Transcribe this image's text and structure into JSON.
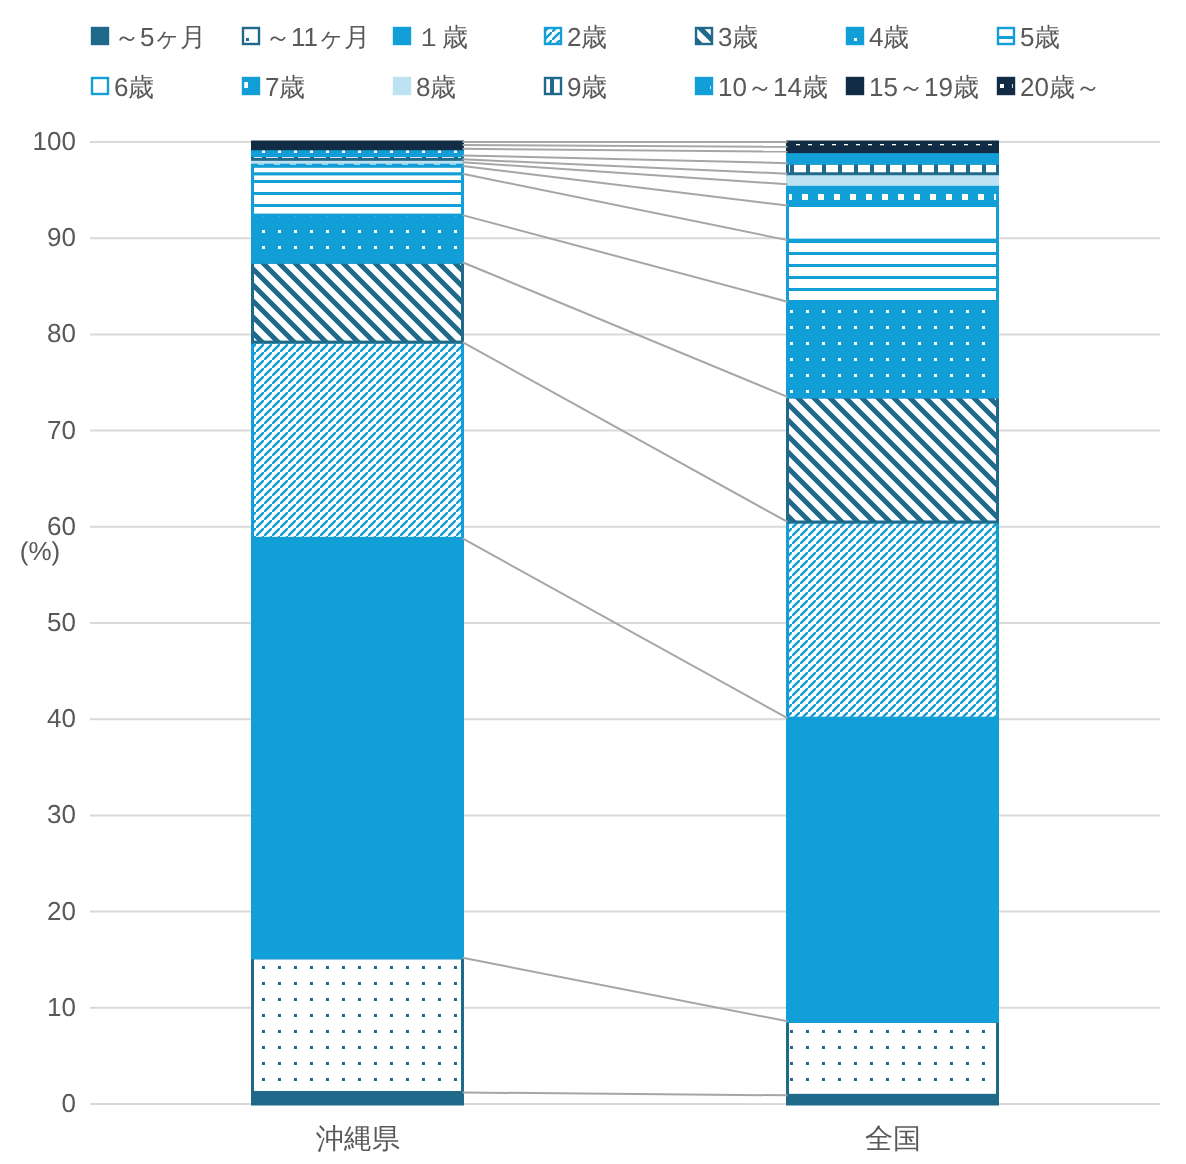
{
  "chart_data": {
    "type": "bar",
    "stacked": true,
    "ylabel": "(%)",
    "categories": [
      "沖縄県",
      "全国"
    ],
    "ylim": [
      0,
      100
    ],
    "yticks": [
      0,
      10,
      20,
      30,
      40,
      50,
      60,
      70,
      80,
      90,
      100
    ],
    "grid": "y",
    "legend": "top",
    "series": [
      {
        "name": "～5ヶ月",
        "color": "#1f6a8a",
        "values": [
          1.2,
          0.9
        ]
      },
      {
        "name": "～11ヶ月",
        "color": "#1f6a8a",
        "values": [
          14.0,
          7.7
        ]
      },
      {
        "name": "１歳",
        "color": "#129ed6",
        "values": [
          43.6,
          31.5
        ]
      },
      {
        "name": "2歳",
        "color": "#129ed6",
        "values": [
          20.4,
          20.4
        ]
      },
      {
        "name": "3歳",
        "color": "#1f6a8a",
        "values": [
          8.3,
          13.0
        ]
      },
      {
        "name": "4歳",
        "color": "#129ed6",
        "values": [
          4.9,
          9.9
        ]
      },
      {
        "name": "5歳",
        "color": "#129ed6",
        "values": [
          4.3,
          6.4
        ]
      },
      {
        "name": "6歳",
        "color": "#129ed6",
        "values": [
          0.8,
          3.6
        ]
      },
      {
        "name": "7歳",
        "color": "#129ed6",
        "values": [
          0.4,
          2.2
        ]
      },
      {
        "name": "8歳",
        "color": "#bde3f3",
        "values": [
          0.3,
          1.1
        ]
      },
      {
        "name": "9歳",
        "color": "#1f6a8a",
        "values": [
          0.4,
          1.1
        ]
      },
      {
        "name": "10～14歳",
        "color": "#129ed6",
        "values": [
          0.7,
          1.2
        ]
      },
      {
        "name": "15～19歳",
        "color": "#132c45",
        "values": [
          0.4,
          0.5
        ]
      },
      {
        "name": "20歳～",
        "color": "#132c45",
        "values": [
          0.3,
          0.5
        ]
      }
    ]
  }
}
